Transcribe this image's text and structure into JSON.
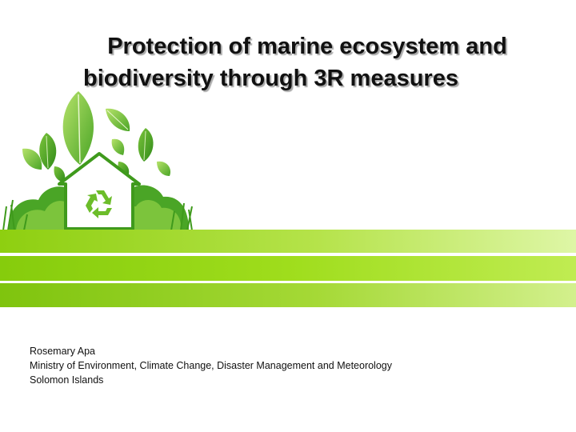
{
  "title": {
    "line1": "Protection of marine ecosystem and",
    "line2": "biodiversity through 3R measures"
  },
  "illustration": {
    "icon": "eco-house-recycle-icon",
    "colors": {
      "leaf_light": "#8fcf3e",
      "leaf_dark": "#3f9a1c",
      "house": "#ffffff",
      "recycle": "#6cbd2a"
    }
  },
  "bands": {
    "colors": [
      "#8ecf10",
      "#86cc0c",
      "#7fc40e"
    ]
  },
  "author": {
    "name": "Rosemary Apa",
    "organization": "Ministry of Environment, Climate Change, Disaster Management and Meteorology",
    "country": "Solomon Islands"
  }
}
